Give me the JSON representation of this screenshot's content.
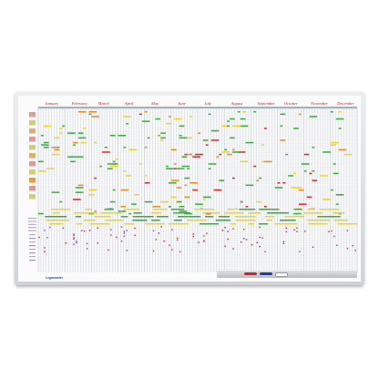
{
  "planner": {
    "months": [
      "January",
      "February",
      "March",
      "April",
      "May",
      "June",
      "July",
      "August",
      "September",
      "October",
      "November",
      "December"
    ],
    "brand": "Legamaster",
    "colors": {
      "month_text": "#c4202a",
      "green": "#33b036",
      "yellow": "#f4d21f",
      "red": "#e02525",
      "orange": "#f08a1d",
      "purple": "#8a3bb0",
      "grid_line": "#b8c3cc",
      "row_line": "#e2e6ea",
      "header_bar": "#9fb0c0"
    }
  },
  "tray": {
    "markers": [
      {
        "color": "#d71f26"
      },
      {
        "color": "#1d3fa8"
      },
      {
        "color": "#ffffff"
      }
    ]
  }
}
